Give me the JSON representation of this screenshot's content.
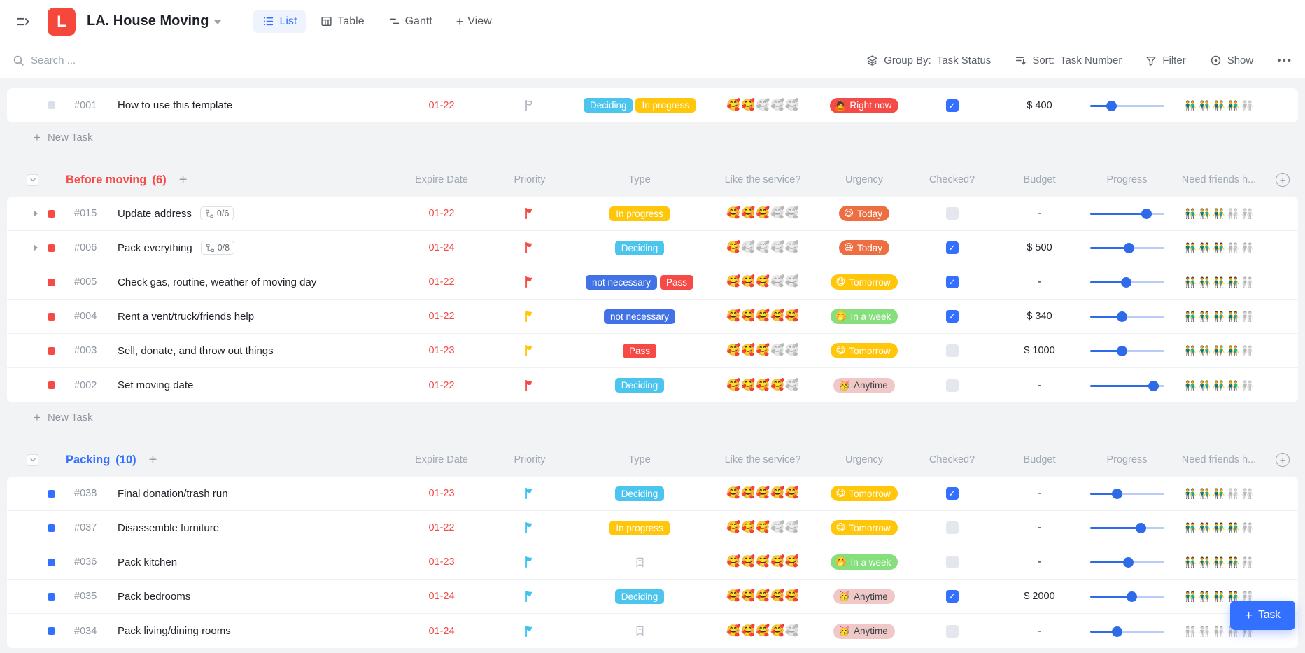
{
  "header": {
    "workspace_initial": "L",
    "title": "LA. House Moving",
    "tabs": [
      {
        "label": "List",
        "active": true
      },
      {
        "label": "Table",
        "active": false
      },
      {
        "label": "Gantt",
        "active": false
      }
    ],
    "add_view_label": "View"
  },
  "toolbar": {
    "search_placeholder": "Search ...",
    "group_by_label": "Group By:",
    "group_by_value": "Task Status",
    "sort_label": "Sort:",
    "sort_value": "Task Number",
    "filter_label": "Filter",
    "show_label": "Show",
    "more_label": "•••"
  },
  "columns": [
    "Expire Date",
    "Priority",
    "Type",
    "Like the service?",
    "Urgency",
    "Checked?",
    "Budget",
    "Progress",
    "Need friends h..."
  ],
  "new_task_label": "New Task",
  "task_fab_label": "Task",
  "emojis": {
    "like": "🥰",
    "friends": "👬"
  },
  "priority_colors": {
    "red": "#f54a45",
    "yellow": "#ffc60a",
    "blue": "#3ec3ef",
    "none": "#aab2bd"
  },
  "type_styles": {
    "Deciding": {
      "bg": "#4cc5ee",
      "fg": "#ffffff"
    },
    "In progress": {
      "bg": "#ffc60a",
      "fg": "#ffffff"
    },
    "not necessary": {
      "bg": "#4273e6",
      "fg": "#ffffff"
    },
    "Pass": {
      "bg": "#f54a45",
      "fg": "#ffffff"
    }
  },
  "urgency_styles": {
    "Right now": {
      "emoji": "🙇",
      "bg": "#f54a45",
      "fg": "#ffffff"
    },
    "Today": {
      "emoji": "😆",
      "bg": "#ec6e41",
      "fg": "#ffffff"
    },
    "Tomorrow": {
      "emoji": "😋",
      "bg": "#ffc60a",
      "fg": "#ffffff"
    },
    "In a week": {
      "emoji": "🤭",
      "bg": "#86df7d",
      "fg": "#ffffff"
    },
    "Anytime": {
      "emoji": "🥳",
      "bg": "#f0c8c8",
      "fg": "#3b4148"
    }
  },
  "pinned_task": {
    "id": "#001",
    "name": "How to use this template",
    "date": "01-22",
    "priority": "none",
    "type": [
      "Deciding",
      "In progress"
    ],
    "like": 2,
    "urgency": "Right now",
    "checked": true,
    "budget": "$ 400",
    "progress": 29,
    "friends": 4,
    "bullet": "#dbe0e8",
    "new_task_after": true
  },
  "groups": [
    {
      "name": "Before moving",
      "count": "(6)",
      "color": "#f54a45",
      "bullet": "#f54a45",
      "new_task_after": true,
      "tasks": [
        {
          "id": "#015",
          "name": "Update address",
          "subtasks": "0/6",
          "date": "01-22",
          "priority": "red",
          "type": [
            "In progress"
          ],
          "like": 3,
          "urgency": "Today",
          "checked": false,
          "budget": "-",
          "progress": 76,
          "friends": 3
        },
        {
          "id": "#006",
          "name": "Pack everything",
          "subtasks": "0/8",
          "date": "01-24",
          "priority": "red",
          "type": [
            "Deciding"
          ],
          "like": 1,
          "urgency": "Today",
          "checked": true,
          "budget": "$ 500",
          "progress": 52,
          "friends": 3
        },
        {
          "id": "#005",
          "name": "Check gas, routine, weather of moving day",
          "date": "01-22",
          "priority": "red",
          "type": [
            "not necessary",
            "Pass"
          ],
          "like": 3,
          "urgency": "Tomorrow",
          "checked": true,
          "budget": "-",
          "progress": 49,
          "friends": 4
        },
        {
          "id": "#004",
          "name": "Rent a vent/truck/friends help",
          "date": "01-22",
          "priority": "yellow",
          "type": [
            "not necessary"
          ],
          "like": 5,
          "urgency": "In a week",
          "checked": true,
          "budget": "$ 340",
          "progress": 43,
          "friends": 4
        },
        {
          "id": "#003",
          "name": "Sell, donate, and throw out things",
          "date": "01-23",
          "priority": "yellow",
          "type": [
            "Pass"
          ],
          "like": 3,
          "urgency": "Tomorrow",
          "checked": false,
          "budget": "$ 1000",
          "progress": 43,
          "friends": 4
        },
        {
          "id": "#002",
          "name": "Set moving date",
          "date": "01-22",
          "priority": "red",
          "type": [
            "Deciding"
          ],
          "like": 4,
          "urgency": "Anytime",
          "checked": false,
          "budget": "-",
          "progress": 85,
          "friends": 4
        }
      ]
    },
    {
      "name": "Packing",
      "count": "(10)",
      "color": "#3370ff",
      "bullet": "#3370ff",
      "new_task_after": false,
      "tasks": [
        {
          "id": "#038",
          "name": "Final donation/trash run",
          "date": "01-23",
          "priority": "blue",
          "type": [
            "Deciding"
          ],
          "like": 5,
          "urgency": "Tomorrow",
          "checked": true,
          "budget": "-",
          "progress": 36,
          "friends": 3
        },
        {
          "id": "#037",
          "name": "Disassemble furniture",
          "date": "01-22",
          "priority": "blue",
          "type": [
            "In progress"
          ],
          "like": 3,
          "urgency": "Tomorrow",
          "checked": false,
          "budget": "-",
          "progress": 68,
          "friends": 4
        },
        {
          "id": "#036",
          "name": "Pack kitchen",
          "date": "01-23",
          "priority": "blue",
          "type": [],
          "like": 5,
          "urgency": "In a week",
          "checked": false,
          "budget": "-",
          "progress": 51,
          "friends": 4
        },
        {
          "id": "#035",
          "name": "Pack bedrooms",
          "date": "01-24",
          "priority": "blue",
          "type": [
            "Deciding"
          ],
          "like": 5,
          "urgency": "Anytime",
          "checked": true,
          "budget": "$ 2000",
          "progress": 56,
          "friends": 4
        },
        {
          "id": "#034",
          "name": "Pack living/dining rooms",
          "date": "01-24",
          "priority": "blue",
          "type": [],
          "like": 4,
          "urgency": "Anytime",
          "checked": false,
          "budget": "-",
          "progress": 36,
          "friends": 0
        }
      ]
    }
  ]
}
